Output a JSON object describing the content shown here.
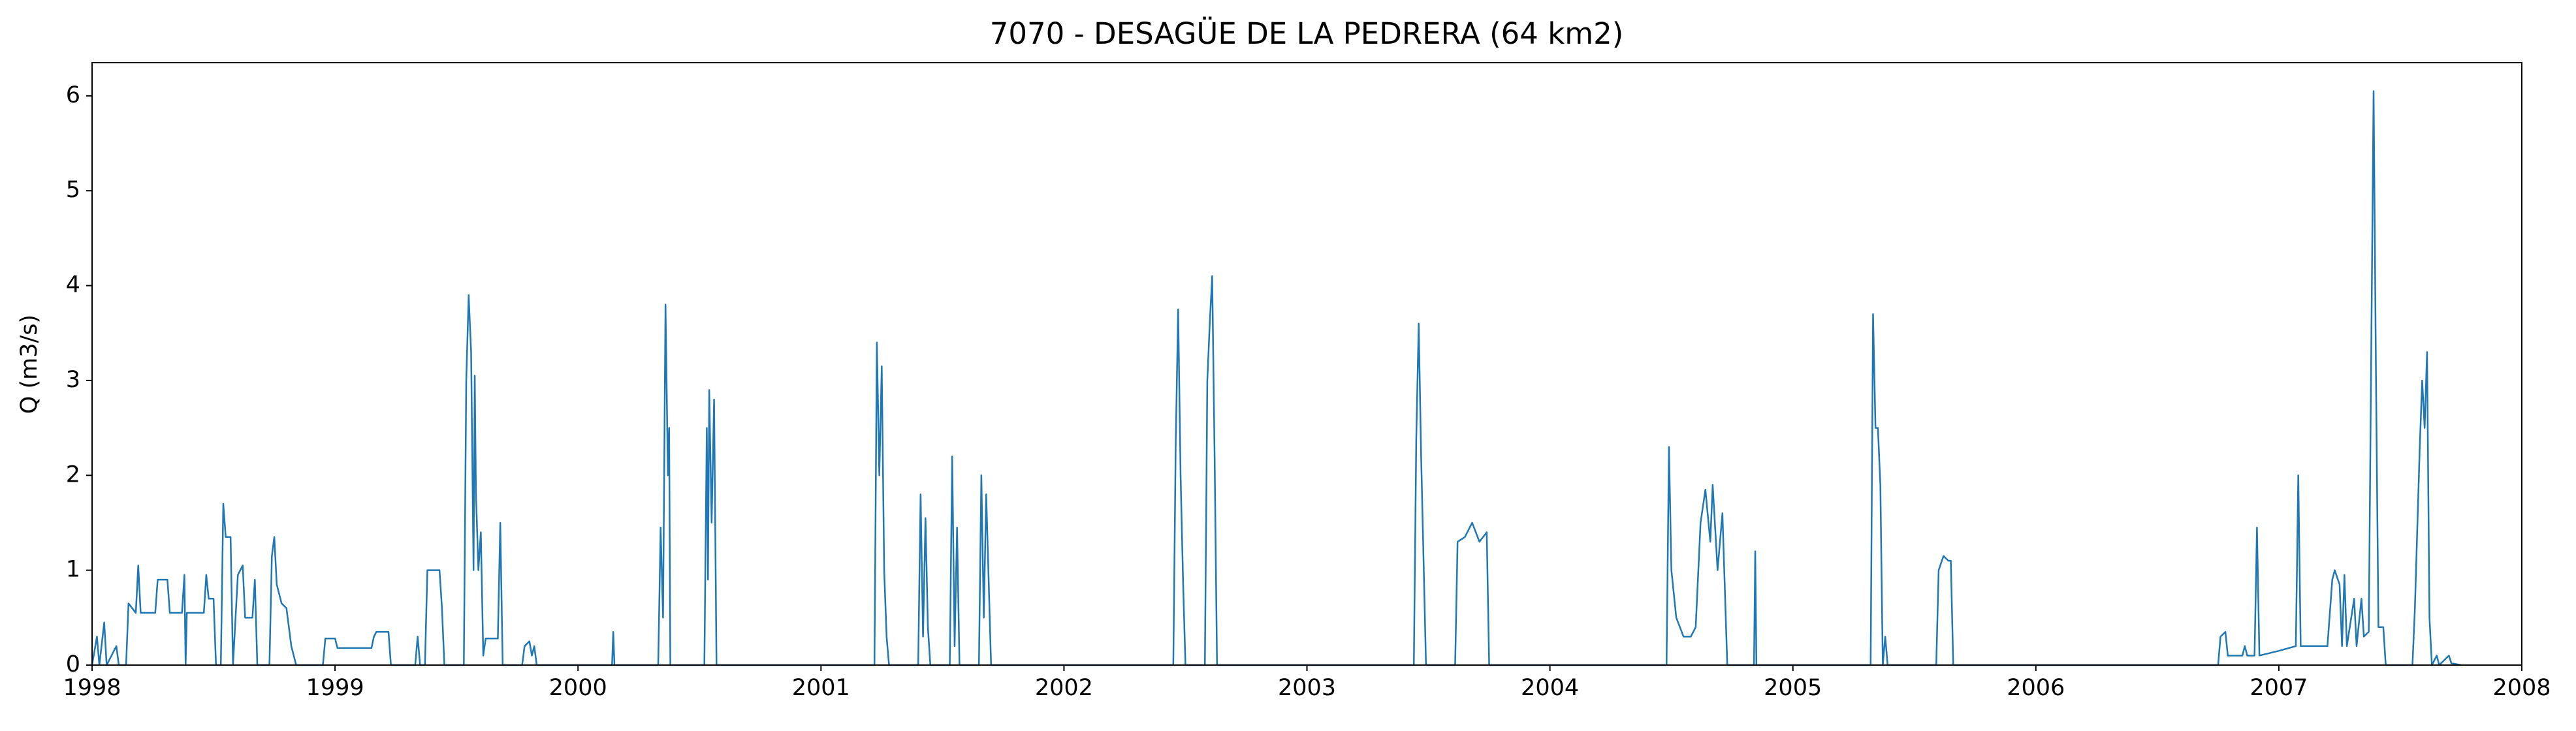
{
  "chart_data": {
    "type": "line",
    "title": "7070 - DESAGÜE DE LA PEDRERA (64 km2)",
    "ylabel": "Q (m3/s)",
    "xlim": [
      1998,
      2008
    ],
    "xticks": [
      1998,
      1999,
      2000,
      2001,
      2002,
      2003,
      2004,
      2005,
      2006,
      2007,
      2008
    ],
    "ylim": [
      0,
      6.35
    ],
    "yticks": [
      0,
      1,
      2,
      3,
      4,
      5,
      6
    ],
    "grid": false,
    "series": [
      {
        "name": "Q",
        "color": "#1f77b4",
        "x": [
          1998.0,
          1998.02,
          1998.03,
          1998.05,
          1998.06,
          1998.1,
          1998.11,
          1998.14,
          1998.15,
          1998.18,
          1998.19,
          1998.2,
          1998.26,
          1998.27,
          1998.31,
          1998.32,
          1998.37,
          1998.38,
          1998.385,
          1998.39,
          1998.46,
          1998.47,
          1998.48,
          1998.5,
          1998.51,
          1998.53,
          1998.54,
          1998.55,
          1998.57,
          1998.58,
          1998.6,
          1998.62,
          1998.63,
          1998.66,
          1998.67,
          1998.68,
          1998.73,
          1998.74,
          1998.75,
          1998.76,
          1998.78,
          1998.8,
          1998.82,
          1998.84,
          1998.95,
          1998.96,
          1999.0,
          1999.01,
          1999.15,
          1999.16,
          1999.17,
          1999.22,
          1999.23,
          1999.33,
          1999.34,
          1999.35,
          1999.37,
          1999.38,
          1999.43,
          1999.44,
          1999.45,
          1999.53,
          1999.54,
          1999.55,
          1999.56,
          1999.57,
          1999.575,
          1999.58,
          1999.59,
          1999.6,
          1999.61,
          1999.62,
          1999.67,
          1999.68,
          1999.69,
          1999.77,
          1999.78,
          1999.8,
          1999.81,
          1999.82,
          1999.83,
          2000.14,
          2000.145,
          2000.15,
          2000.33,
          2000.34,
          2000.35,
          2000.36,
          2000.37,
          2000.375,
          2000.38,
          2000.52,
          2000.53,
          2000.535,
          2000.54,
          2000.55,
          2000.56,
          2000.57,
          2001.22,
          2001.23,
          2001.24,
          2001.25,
          2001.26,
          2001.27,
          2001.28,
          2001.4,
          2001.41,
          2001.42,
          2001.43,
          2001.44,
          2001.45,
          2001.53,
          2001.54,
          2001.55,
          2001.56,
          2001.57,
          2001.65,
          2001.66,
          2001.67,
          2001.68,
          2001.7,
          2002.45,
          2002.46,
          2002.47,
          2002.48,
          2002.49,
          2002.5,
          2002.58,
          2002.59,
          2002.6,
          2002.61,
          2002.62,
          2002.63,
          2003.44,
          2003.45,
          2003.46,
          2003.47,
          2003.48,
          2003.49,
          2003.61,
          2003.62,
          2003.65,
          2003.68,
          2003.71,
          2003.74,
          2003.75,
          2004.48,
          2004.49,
          2004.5,
          2004.52,
          2004.55,
          2004.58,
          2004.6,
          2004.62,
          2004.64,
          2004.66,
          2004.67,
          2004.69,
          2004.71,
          2004.72,
          2004.73,
          2004.84,
          2004.845,
          2004.85,
          2005.32,
          2005.33,
          2005.34,
          2005.35,
          2005.36,
          2005.37,
          2005.38,
          2005.39,
          2005.59,
          2005.6,
          2005.62,
          2005.64,
          2005.65,
          2005.66,
          2006.75,
          2006.76,
          2006.78,
          2006.79,
          2006.85,
          2006.86,
          2006.87,
          2006.9,
          2006.91,
          2006.92,
          2007.0,
          2007.07,
          2007.08,
          2007.09,
          2007.2,
          2007.22,
          2007.23,
          2007.25,
          2007.26,
          2007.27,
          2007.28,
          2007.31,
          2007.32,
          2007.34,
          2007.35,
          2007.37,
          2007.39,
          2007.4,
          2007.41,
          2007.43,
          2007.44,
          2007.55,
          2007.56,
          2007.58,
          2007.59,
          2007.6,
          2007.61,
          2007.62,
          2007.63,
          2007.65,
          2007.66,
          2007.7,
          2007.71,
          2007.75
        ],
        "values": [
          0,
          0.3,
          0,
          0.45,
          0,
          0.2,
          0,
          0,
          0.65,
          0.55,
          1.05,
          0.55,
          0.55,
          0.9,
          0.9,
          0.55,
          0.55,
          0.95,
          0,
          0.55,
          0.55,
          0.95,
          0.7,
          0.7,
          0,
          0,
          1.7,
          1.35,
          1.35,
          0,
          0.95,
          1.05,
          0.5,
          0.5,
          0.9,
          0,
          0,
          1.15,
          1.35,
          0.85,
          0.65,
          0.6,
          0.2,
          0,
          0,
          0.28,
          0.28,
          0.18,
          0.18,
          0.3,
          0.35,
          0.35,
          0,
          0,
          0.3,
          0,
          0,
          1.0,
          1.0,
          0.6,
          0,
          0,
          3.0,
          3.9,
          3.3,
          1.0,
          3.05,
          1.8,
          1.0,
          1.4,
          0.1,
          0.28,
          0.28,
          1.5,
          0,
          0,
          0.2,
          0.25,
          0.1,
          0.2,
          0,
          0,
          0.35,
          0,
          0,
          1.45,
          0.5,
          3.8,
          2.0,
          2.5,
          0,
          0,
          2.5,
          0.9,
          2.9,
          1.5,
          2.8,
          0,
          0,
          3.4,
          2.0,
          3.15,
          1.0,
          0.3,
          0,
          0,
          1.8,
          0.3,
          1.55,
          0.4,
          0,
          0,
          2.2,
          0.2,
          1.45,
          0,
          0,
          2.0,
          0.5,
          1.8,
          0,
          0,
          2.35,
          3.75,
          2.0,
          0.9,
          0,
          0,
          3.0,
          3.6,
          4.1,
          2.2,
          0,
          0,
          2.4,
          3.6,
          2.2,
          1.1,
          0,
          0,
          1.3,
          1.35,
          1.5,
          1.3,
          1.4,
          0,
          0,
          2.3,
          1.0,
          0.5,
          0.3,
          0.3,
          0.4,
          1.5,
          1.85,
          1.3,
          1.9,
          1.0,
          1.6,
          0.8,
          0,
          0,
          1.2,
          0,
          0,
          3.7,
          2.5,
          2.5,
          1.9,
          0,
          0.3,
          0,
          0,
          1.0,
          1.15,
          1.1,
          1.1,
          0,
          0,
          0.3,
          0.35,
          0.1,
          0.1,
          0.2,
          0.1,
          0.1,
          1.45,
          0.1,
          0.15,
          0.2,
          2.0,
          0.2,
          0.2,
          0.9,
          1.0,
          0.85,
          0.2,
          0.95,
          0.2,
          0.7,
          0.2,
          0.7,
          0.3,
          0.35,
          6.05,
          3.0,
          0.4,
          0.4,
          0,
          0,
          0.6,
          2.3,
          3.0,
          2.5,
          3.3,
          0.5,
          0,
          0.1,
          0,
          0.1,
          0.02,
          0
        ]
      }
    ]
  }
}
